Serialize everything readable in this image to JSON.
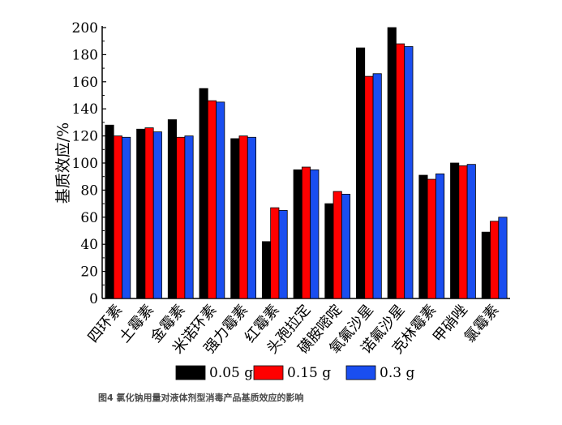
{
  "chart_data": {
    "type": "bar",
    "ylabel": "基质效应/%",
    "ylim": [
      0,
      200
    ],
    "yticks": [
      0,
      20,
      40,
      60,
      80,
      100,
      120,
      140,
      160,
      180,
      200
    ],
    "grid": false,
    "legend_position": "bottom",
    "categories": [
      "四环素",
      "土霉素",
      "金霉素",
      "米诺环素",
      "强力霉素",
      "红霉素",
      "头孢拉定",
      "磺胺嘧啶",
      "氧氟沙星",
      "诺氟沙星",
      "克林霉素",
      "甲硝唑",
      "氯霉素"
    ],
    "series": [
      {
        "name": "0.05 g",
        "color": "#000000",
        "values": [
          128,
          125,
          132,
          155,
          118,
          42,
          95,
          70,
          185,
          200,
          91,
          100,
          49
        ]
      },
      {
        "name": "0.15 g",
        "color": "#ff0000",
        "values": [
          120,
          126,
          119,
          146,
          120,
          67,
          97,
          79,
          164,
          188,
          88,
          98,
          57
        ]
      },
      {
        "name": "0.3 g",
        "color": "#1a4ef0",
        "values": [
          119,
          123,
          120,
          145,
          119,
          65,
          95,
          77,
          166,
          186,
          92,
          99,
          60
        ]
      }
    ]
  },
  "caption": "图4  氯化钠用量对液体剂型消毒产品基质效应的影响"
}
